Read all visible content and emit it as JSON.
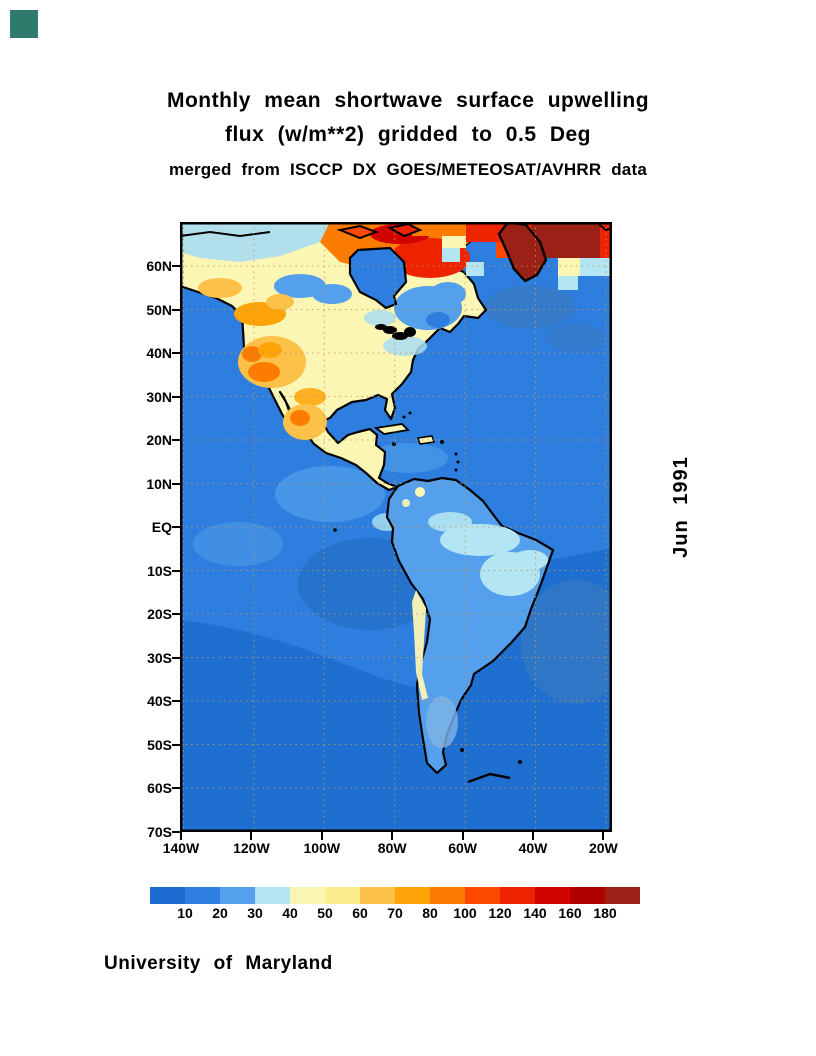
{
  "corner_marker": {
    "color": "#2e7b6e"
  },
  "title": {
    "line1": "Monthly mean shortwave surface upwelling",
    "line2": "flux (w/m**2) gridded to 0.5 Deg",
    "line3": "merged from ISCCP DX GOES/METEOSAT/AVHRR data"
  },
  "side_label": "Jun 1991",
  "footer": "University of Maryland",
  "axes": {
    "lat_labels": [
      "60N",
      "50N",
      "40N",
      "30N",
      "20N",
      "10N",
      "EQ",
      "10S",
      "20S",
      "30S",
      "40S",
      "50S",
      "60S",
      "70S"
    ],
    "lon_labels": [
      "140W",
      "120W",
      "100W",
      "80W",
      "60W",
      "40W",
      "20W"
    ]
  },
  "colorbar": {
    "levels": [
      10,
      20,
      30,
      40,
      50,
      60,
      70,
      80,
      100,
      120,
      140,
      160,
      180
    ],
    "colors": [
      "#1c6cd2",
      "#2d7edf",
      "#55a0ec",
      "#b4e5f3",
      "#fcf6b4",
      "#fcee8e",
      "#fcc149",
      "#ffa408",
      "#fd7c00",
      "#fb4a00",
      "#ee2400",
      "#d00500",
      "#ae0000",
      "#9b2015"
    ],
    "units": "w/m**2"
  },
  "chart_data": {
    "type": "heatmap",
    "title": "Monthly mean shortwave surface upwelling flux (w/m**2) gridded to 0.5 Deg",
    "subtitle": "merged from ISCCP DX GOES/METEOSAT/AVHRR data",
    "date": "Jun 1991",
    "source": "University of Maryland",
    "projection": "latlon",
    "lat_range_deg": [
      -70,
      70
    ],
    "lon_range_deg": [
      -141,
      -17
    ],
    "lat_ticks": [
      "60N",
      "50N",
      "40N",
      "30N",
      "20N",
      "10N",
      "EQ",
      "10S",
      "20S",
      "30S",
      "40S",
      "50S",
      "60S",
      "70S"
    ],
    "lon_ticks": [
      "140W",
      "120W",
      "100W",
      "80W",
      "60W",
      "40W",
      "20W"
    ],
    "grid": "dotted, every 10 deg latitude and 20 deg longitude",
    "legend_position": "bottom",
    "colorbar_levels": [
      10,
      20,
      30,
      40,
      50,
      60,
      70,
      80,
      100,
      120,
      140,
      160,
      180
    ],
    "colorbar_colors": [
      "#1c6cd2",
      "#2d7edf",
      "#55a0ec",
      "#b4e5f3",
      "#fcf6b4",
      "#fcee8e",
      "#fcc149",
      "#ffa408",
      "#fd7c00",
      "#fb4a00",
      "#ee2400",
      "#d00500",
      "#ae0000",
      "#9b2015"
    ],
    "units": "w/m**2",
    "region_values": [
      {
        "region": "tropical and midlatitude ocean",
        "flux_w_m2": "20-30"
      },
      {
        "region": "southern ocean poleward of ~25S",
        "flux_w_m2": "10-20"
      },
      {
        "region": "subtropical SE Pacific / S Atlantic patches",
        "flux_w_m2": "10-20"
      },
      {
        "region": "Amazon basin and NE Brazil",
        "flux_w_m2": "30-40"
      },
      {
        "region": "central and eastern United States",
        "flux_w_m2": "40-50"
      },
      {
        "region": "western US mountains and deserts",
        "flux_w_m2": "50-80"
      },
      {
        "region": "northern Mexico plateau",
        "flux_w_m2": "50-70"
      },
      {
        "region": "eastern Canada / Quebec interior",
        "flux_w_m2": "80-140"
      },
      {
        "region": "northern boreal Canada and Arctic islands",
        "flux_w_m2": "80-140"
      },
      {
        "region": "Greenland ice sheet",
        "flux_w_m2": ">180"
      },
      {
        "region": "Arctic ocean cells along top edge",
        "flux_w_m2": "30-50"
      },
      {
        "region": "Andes strip",
        "flux_w_m2": "40-50"
      }
    ]
  }
}
